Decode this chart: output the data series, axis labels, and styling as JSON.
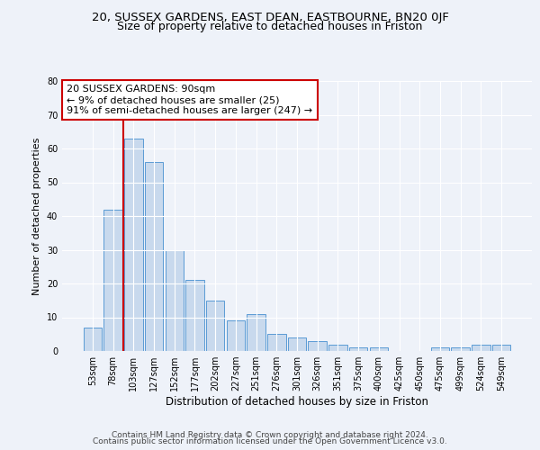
{
  "title1": "20, SUSSEX GARDENS, EAST DEAN, EASTBOURNE, BN20 0JF",
  "title2": "Size of property relative to detached houses in Friston",
  "xlabel": "Distribution of detached houses by size in Friston",
  "ylabel": "Number of detached properties",
  "bar_labels": [
    "53sqm",
    "78sqm",
    "103sqm",
    "127sqm",
    "152sqm",
    "177sqm",
    "202sqm",
    "227sqm",
    "251sqm",
    "276sqm",
    "301sqm",
    "326sqm",
    "351sqm",
    "375sqm",
    "400sqm",
    "425sqm",
    "450sqm",
    "475sqm",
    "499sqm",
    "524sqm",
    "549sqm"
  ],
  "bar_values": [
    7,
    42,
    63,
    56,
    30,
    21,
    15,
    9,
    11,
    5,
    4,
    3,
    2,
    1,
    1,
    0,
    0,
    1,
    1,
    2,
    2
  ],
  "bar_color": "#c8d9ed",
  "bar_edgecolor": "#5b9bd5",
  "annotation_text_line1": "20 SUSSEX GARDENS: 90sqm",
  "annotation_text_line2": "← 9% of detached houses are smaller (25)",
  "annotation_text_line3": "91% of semi-detached houses are larger (247) →",
  "vline_color": "#cc0000",
  "ylim": [
    0,
    80
  ],
  "yticks": [
    0,
    10,
    20,
    30,
    40,
    50,
    60,
    70,
    80
  ],
  "footer1": "Contains HM Land Registry data © Crown copyright and database right 2024.",
  "footer2": "Contains public sector information licensed under the Open Government Licence v3.0.",
  "background_color": "#eef2f9",
  "grid_color": "#ffffff",
  "title1_fontsize": 9.5,
  "title2_fontsize": 9,
  "xlabel_fontsize": 8.5,
  "ylabel_fontsize": 8,
  "tick_fontsize": 7,
  "annotation_fontsize": 8,
  "footer_fontsize": 6.5
}
